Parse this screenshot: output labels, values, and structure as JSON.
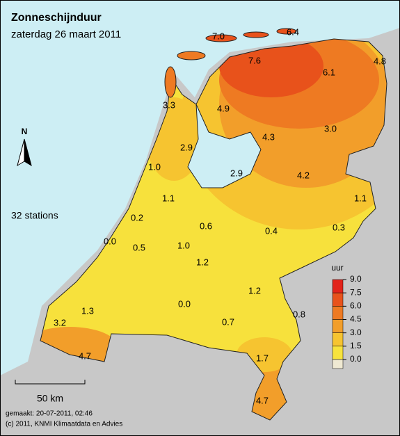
{
  "header": {
    "title": "Zonneschijnduur",
    "subtitle": "zaterdag 26 maart 2011"
  },
  "north": "N",
  "station_count": "32 stations",
  "scale_bar": "50 km",
  "footer": {
    "made": "gemaakt: 20-07-2011, 02:46",
    "copyright": "(c) 2011, KNMI Klimaatdata en Advies"
  },
  "legend": {
    "title": "uur",
    "ticks": [
      {
        "value": 9,
        "label": "9.0"
      },
      {
        "value": 7.5,
        "label": "7.5"
      },
      {
        "value": 6,
        "label": "6.0"
      },
      {
        "value": 4.5,
        "label": "4.5"
      },
      {
        "value": 3,
        "label": "3.0"
      },
      {
        "value": 1.5,
        "label": "1.5"
      },
      {
        "value": 0,
        "label": "0.0"
      }
    ],
    "colors": [
      "#e2231a",
      "#e8521b",
      "#ee7a22",
      "#f29e2a",
      "#f6c430",
      "#f7e33c",
      "#efe9d2"
    ]
  },
  "stations": [
    "7.0",
    "6.4",
    "7.6",
    "4.8",
    "6.1",
    "3.3",
    "4.9",
    "3.0",
    "4.3",
    "2.9",
    "1.0",
    "2.9",
    "4.2",
    "1.1",
    "1.1",
    "0.2",
    "0.6",
    "0.4",
    "0.3",
    "0.0",
    "0.5",
    "1.0",
    "1.2",
    "1.2",
    "0.0",
    "1.3",
    "0.8",
    "0.7",
    "3.2",
    "4.7",
    "1.7",
    "4.7"
  ]
}
